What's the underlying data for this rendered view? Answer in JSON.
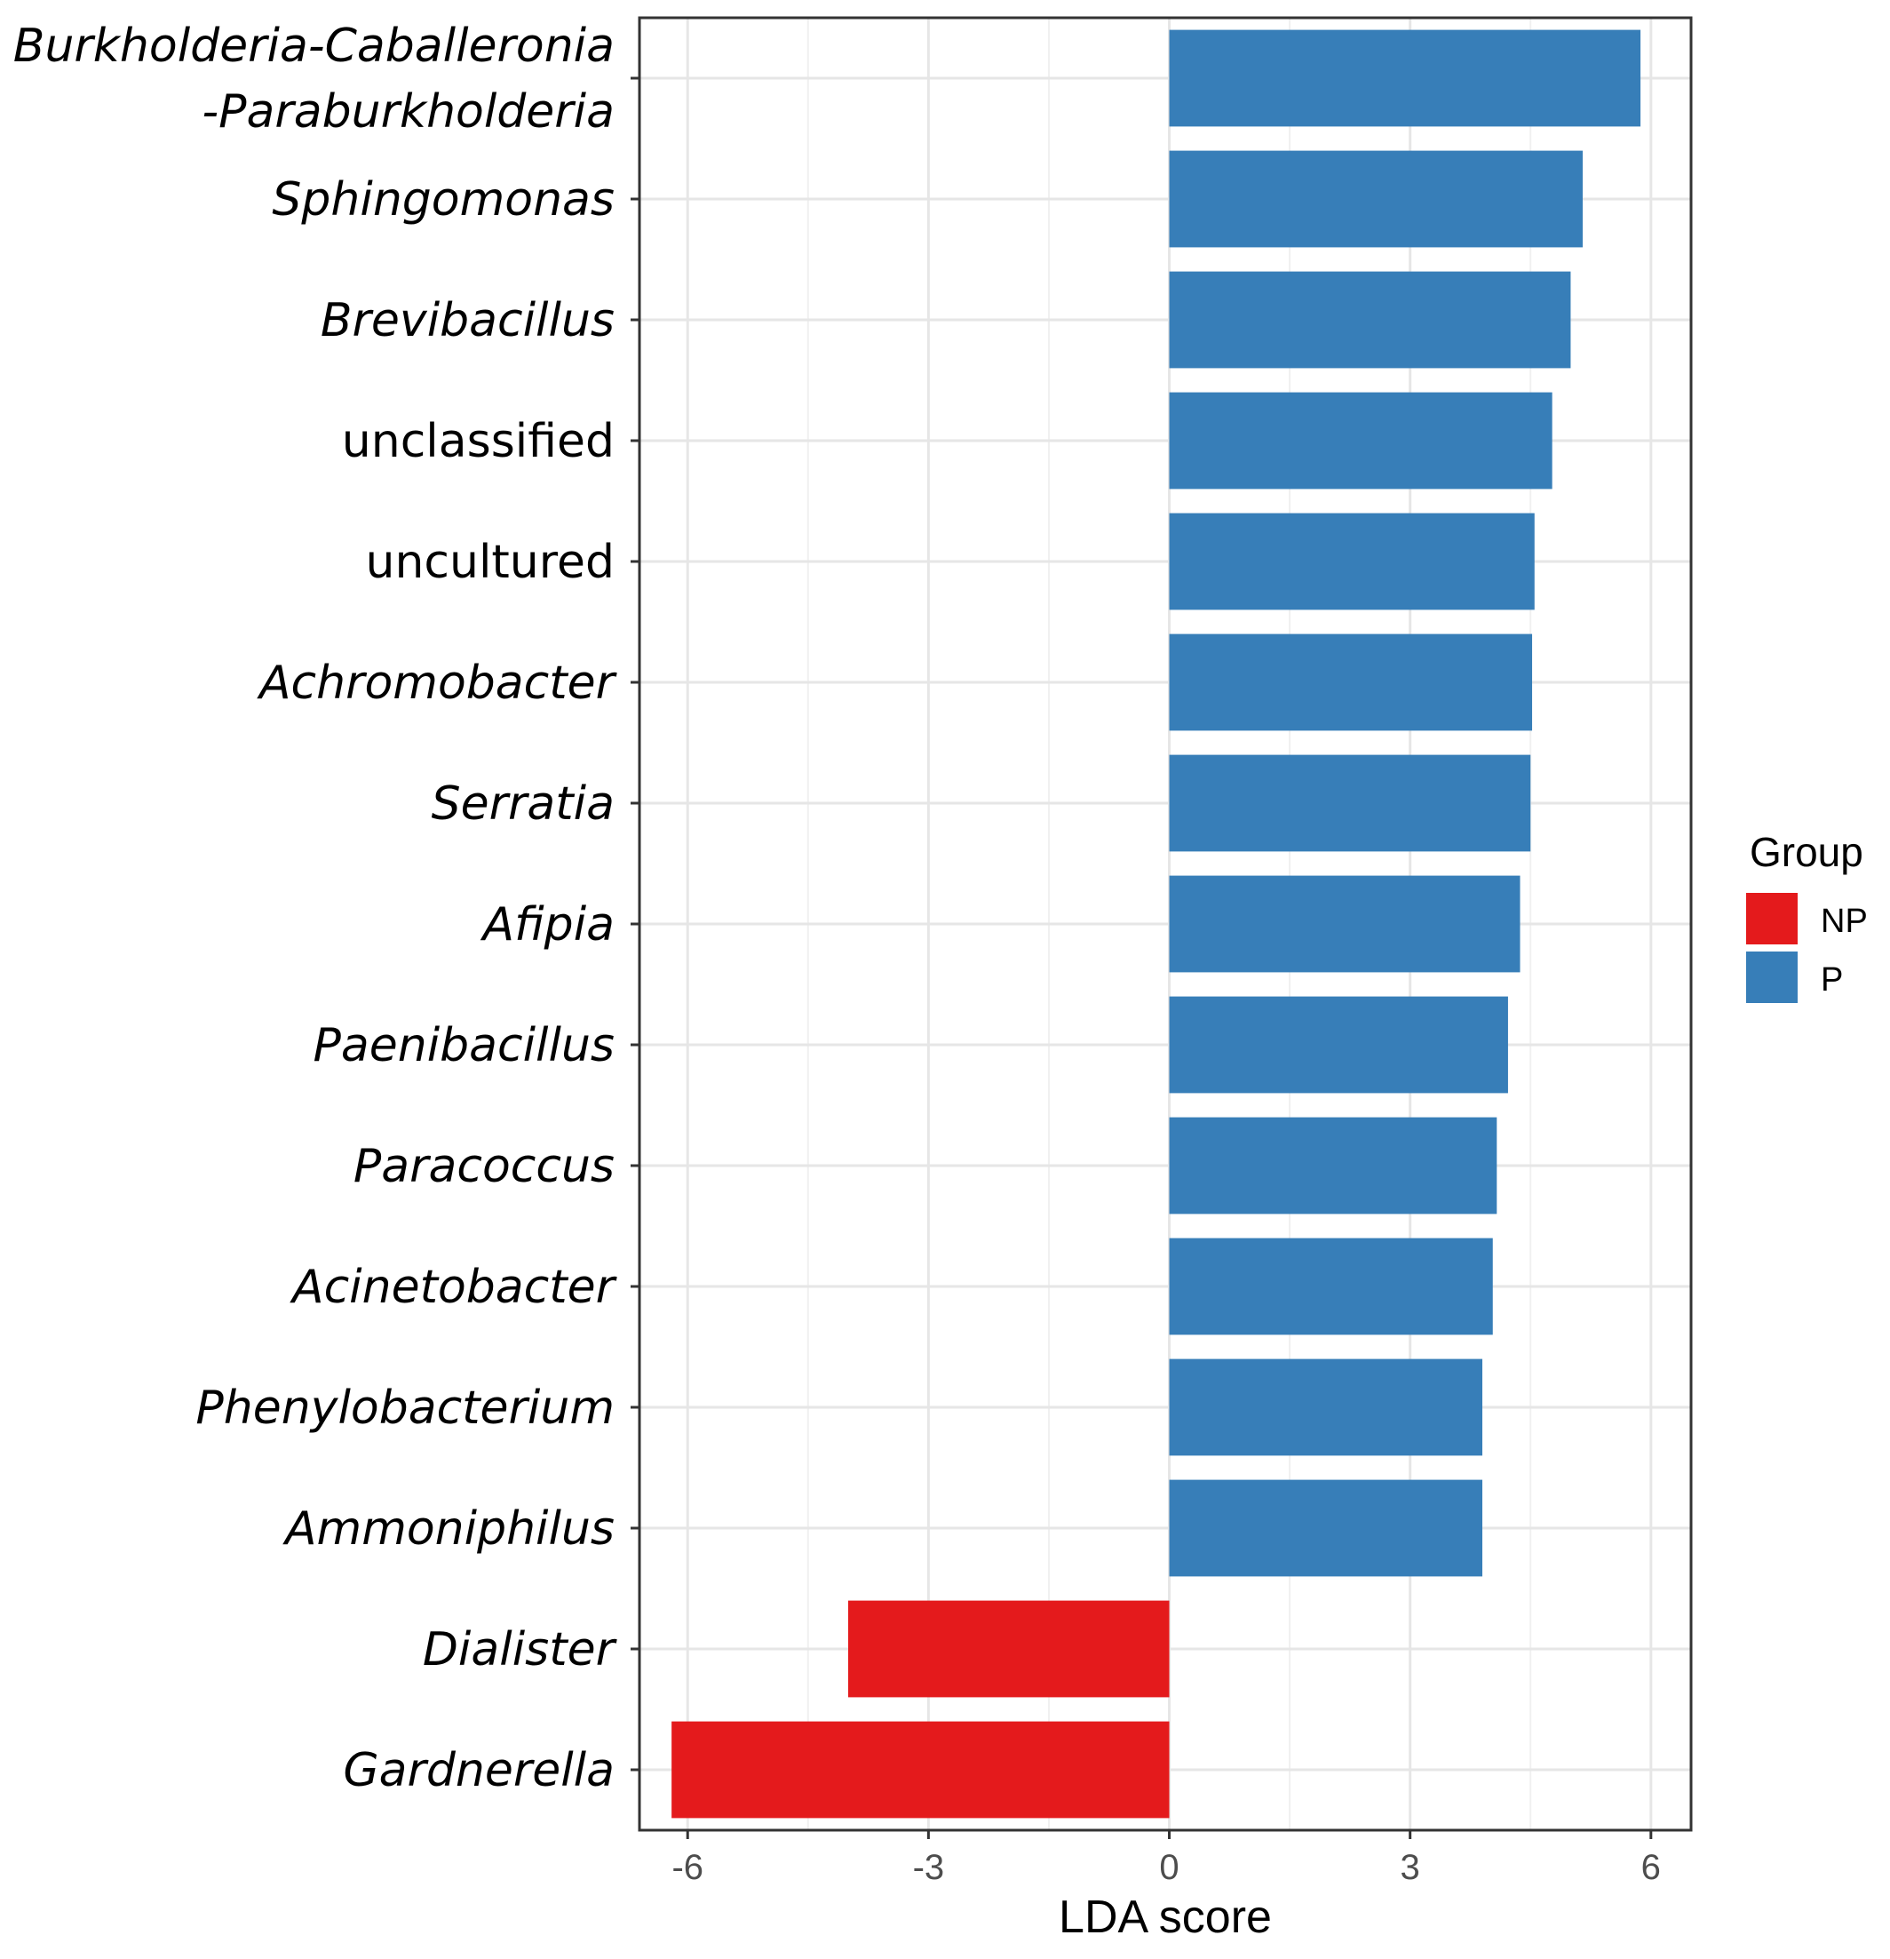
{
  "chart_data": {
    "type": "bar",
    "orientation": "horizontal",
    "xlabel": "LDA score",
    "ylabel": "",
    "xlim": [
      -6.6,
      6.5
    ],
    "xticks": [
      -6,
      -3,
      0,
      3,
      6
    ],
    "xtick_labels": [
      "-6",
      "-3",
      "0",
      "3",
      "6"
    ],
    "grid": true,
    "legend_position": "right",
    "legend_title": "Group",
    "groups": [
      {
        "name": "NP",
        "color": "#e41a1c"
      },
      {
        "name": "P",
        "color": "#377eb8"
      }
    ],
    "categories": [
      {
        "label": [
          "Burkholderia-Caballeronia",
          "-Paraburkholderia"
        ],
        "italic": true,
        "value": 5.87,
        "group": "P"
      },
      {
        "label": [
          "Sphingomonas"
        ],
        "italic": true,
        "value": 5.15,
        "group": "P"
      },
      {
        "label": [
          "Brevibacillus"
        ],
        "italic": true,
        "value": 5.0,
        "group": "P"
      },
      {
        "label": [
          "unclassified"
        ],
        "italic": false,
        "value": 4.77,
        "group": "P"
      },
      {
        "label": [
          "uncultured"
        ],
        "italic": false,
        "value": 4.55,
        "group": "P"
      },
      {
        "label": [
          "Achromobacter"
        ],
        "italic": true,
        "value": 4.52,
        "group": "P"
      },
      {
        "label": [
          "Serratia"
        ],
        "italic": true,
        "value": 4.5,
        "group": "P"
      },
      {
        "label": [
          "Afipia"
        ],
        "italic": true,
        "value": 4.37,
        "group": "P"
      },
      {
        "label": [
          "Paenibacillus"
        ],
        "italic": true,
        "value": 4.22,
        "group": "P"
      },
      {
        "label": [
          "Paracoccus"
        ],
        "italic": true,
        "value": 4.08,
        "group": "P"
      },
      {
        "label": [
          "Acinetobacter"
        ],
        "italic": true,
        "value": 4.03,
        "group": "P"
      },
      {
        "label": [
          "Phenylobacterium"
        ],
        "italic": true,
        "value": 3.9,
        "group": "P"
      },
      {
        "label": [
          "Ammoniphilus"
        ],
        "italic": true,
        "value": 3.9,
        "group": "P"
      },
      {
        "label": [
          "Dialister"
        ],
        "italic": true,
        "value": -4.0,
        "group": "NP"
      },
      {
        "label": [
          "Gardnerella"
        ],
        "italic": true,
        "value": -6.2,
        "group": "NP"
      }
    ]
  }
}
